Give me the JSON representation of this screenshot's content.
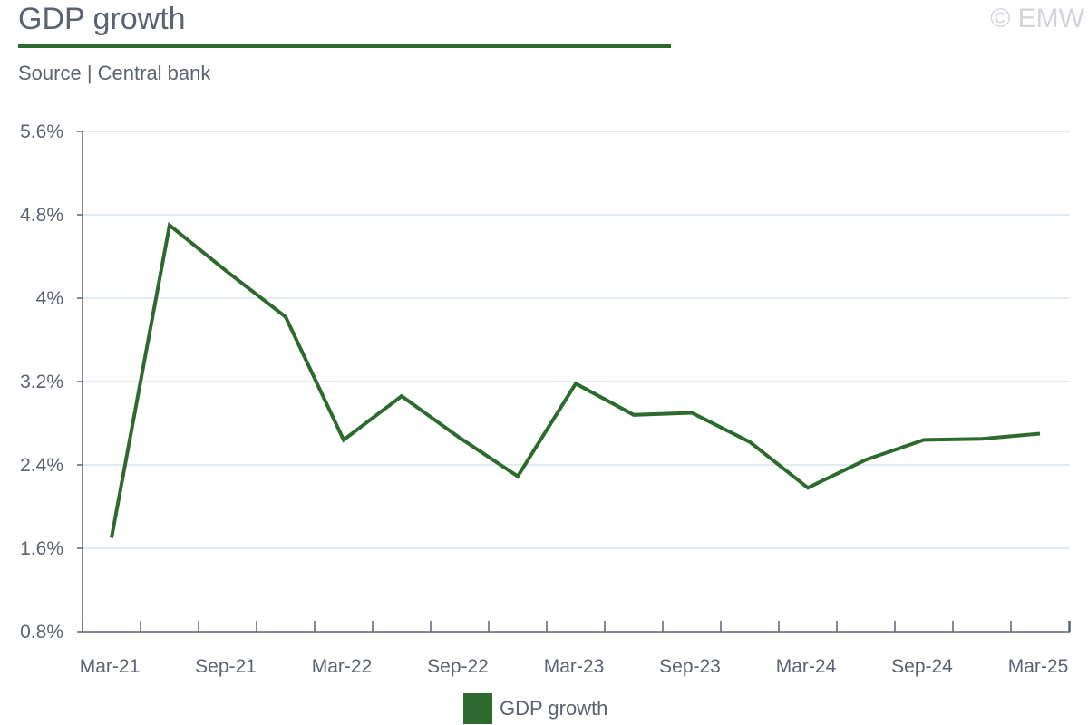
{
  "header": {
    "title": "GDP growth",
    "subtitle": "Source | Central bank",
    "copyright": "© EMW"
  },
  "colors": {
    "series": "#2d6a2e",
    "grid": "#d9e3ee",
    "axis": "#5b6270"
  },
  "chart_data": {
    "type": "line",
    "title": "GDP growth",
    "xlabel": "",
    "ylabel": "",
    "x": [
      "Mar-21",
      "Jun-21",
      "Sep-21",
      "Dec-21",
      "Mar-22",
      "Jun-22",
      "Sep-22",
      "Dec-22",
      "Mar-23",
      "Jun-23",
      "Sep-23",
      "Dec-23",
      "Mar-24",
      "Jun-24",
      "Sep-24",
      "Dec-24",
      "Mar-25"
    ],
    "x_tick_labels": [
      "Mar-21",
      "Sep-21",
      "Mar-22",
      "Sep-22",
      "Mar-23",
      "Sep-23",
      "Mar-24",
      "Sep-24",
      "Mar-25"
    ],
    "y_tick_labels": [
      "0.8%",
      "1.6%",
      "2.4%",
      "3.2%",
      "4%",
      "4.8%",
      "5.6%"
    ],
    "y_ticks": [
      0.8,
      1.6,
      2.4,
      3.2,
      4.0,
      4.8,
      5.6
    ],
    "ylim": [
      0.8,
      5.6
    ],
    "grid": true,
    "legend_position": "bottom",
    "series": [
      {
        "name": "GDP growth",
        "values": [
          1.7,
          4.7,
          4.25,
          3.82,
          2.64,
          3.06,
          2.66,
          2.29,
          3.18,
          2.88,
          2.9,
          2.62,
          2.18,
          2.45,
          2.64,
          2.65,
          2.7
        ]
      }
    ]
  }
}
